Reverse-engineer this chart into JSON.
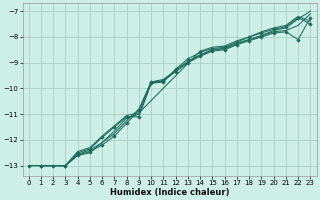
{
  "xlabel": "Humidex (Indice chaleur)",
  "bg_color": "#ceeee8",
  "grid_color": "#aed4cc",
  "line_color": "#1a6b5a",
  "xlim": [
    -0.5,
    23.5
  ],
  "ylim": [
    -13.4,
    -6.7
  ],
  "xticks": [
    0,
    1,
    2,
    3,
    4,
    5,
    6,
    7,
    8,
    9,
    10,
    11,
    12,
    13,
    14,
    15,
    16,
    17,
    18,
    19,
    20,
    21,
    22,
    23
  ],
  "yticks": [
    -13,
    -12,
    -11,
    -10,
    -9,
    -8,
    -7
  ],
  "lines": [
    {
      "x": [
        0,
        1,
        2,
        3,
        4,
        5,
        6,
        7,
        8,
        9,
        10,
        11,
        12,
        13,
        14,
        15,
        16,
        17,
        18,
        19,
        20,
        21,
        22,
        23
      ],
      "y": [
        -13.0,
        -13.0,
        -13.0,
        -13.0,
        -12.6,
        -12.45,
        -12.2,
        -11.85,
        -11.35,
        -10.85,
        -9.75,
        -9.7,
        -9.35,
        -9.0,
        -8.75,
        -8.55,
        -8.5,
        -8.3,
        -8.15,
        -8.0,
        -7.85,
        -7.8,
        -8.1,
        -7.25
      ],
      "marker": true
    },
    {
      "x": [
        0,
        1,
        2,
        3,
        4,
        5,
        6,
        7,
        8,
        9,
        10,
        11,
        12,
        13,
        14,
        15,
        16,
        17,
        18,
        19,
        20,
        21,
        22,
        23
      ],
      "y": [
        -13.0,
        -13.0,
        -13.0,
        -13.0,
        -12.55,
        -12.4,
        -12.1,
        -11.75,
        -11.25,
        -10.8,
        -9.75,
        -9.65,
        -9.3,
        -8.95,
        -8.7,
        -8.5,
        -8.45,
        -8.25,
        -8.1,
        -7.95,
        -7.8,
        -7.75,
        -7.55,
        -7.1
      ],
      "marker": false
    },
    {
      "x": [
        1,
        3,
        4,
        5,
        6,
        7,
        8,
        9,
        10,
        11,
        12,
        13,
        14,
        15,
        16,
        17,
        18,
        19,
        20,
        21,
        22,
        23
      ],
      "y": [
        -13.0,
        -13.0,
        -12.6,
        -12.5,
        -12.1,
        -11.65,
        -11.15,
        -11.0,
        -9.8,
        -9.7,
        -9.3,
        -8.95,
        -8.7,
        -8.5,
        -8.45,
        -8.25,
        -8.1,
        -7.95,
        -7.75,
        -7.65,
        -7.3,
        -7.0
      ],
      "marker": false
    },
    {
      "x": [
        1,
        3,
        4,
        5,
        6,
        7,
        8,
        9,
        10,
        11,
        12,
        13,
        14,
        15,
        16,
        17,
        18,
        19,
        20,
        21,
        22,
        23
      ],
      "y": [
        -13.0,
        -13.0,
        -12.5,
        -12.35,
        -11.9,
        -11.5,
        -11.1,
        -11.1,
        -9.8,
        -9.75,
        -9.25,
        -8.85,
        -8.6,
        -8.45,
        -8.4,
        -8.2,
        -8.0,
        -7.85,
        -7.7,
        -7.6,
        -7.25,
        -7.5
      ],
      "marker": true
    },
    {
      "x": [
        1,
        3,
        4,
        5,
        6,
        7,
        8,
        9,
        14,
        15,
        16,
        17,
        18,
        19,
        20,
        21,
        22,
        23
      ],
      "y": [
        -13.0,
        -13.0,
        -12.45,
        -12.3,
        -11.85,
        -11.45,
        -11.05,
        -10.95,
        -8.55,
        -8.4,
        -8.35,
        -8.15,
        -8.0,
        -7.8,
        -7.65,
        -7.55,
        -7.2,
        -7.4
      ],
      "marker": false
    }
  ]
}
